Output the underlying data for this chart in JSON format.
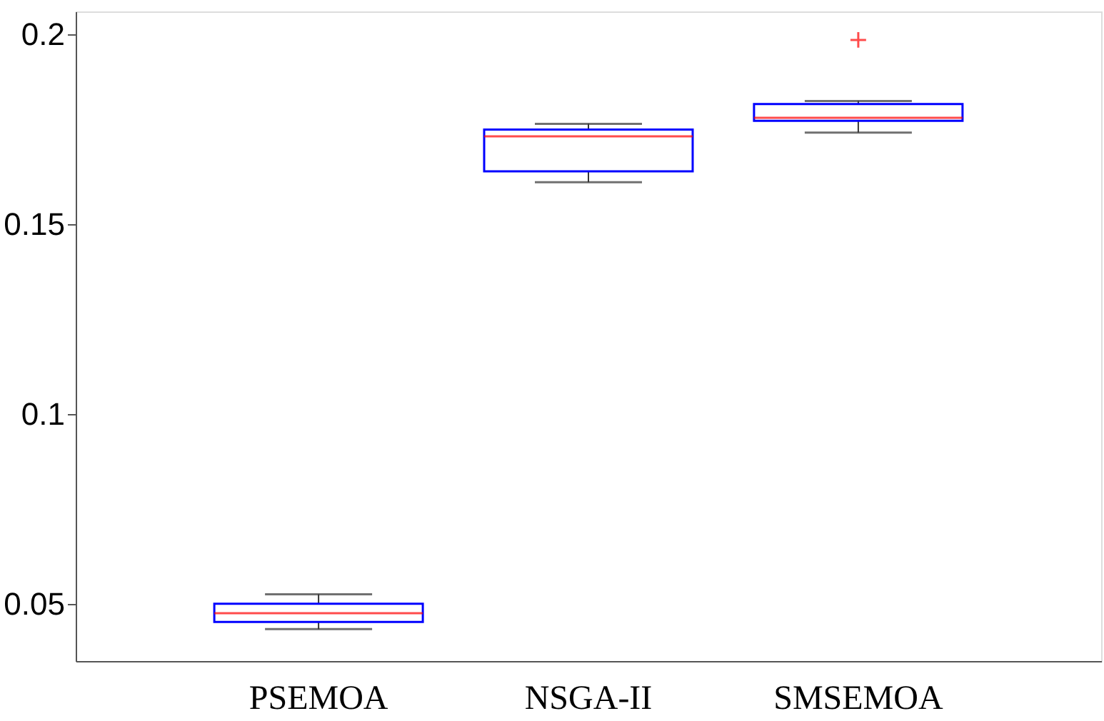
{
  "chart_data": {
    "type": "box",
    "categories": [
      "PSEMOA",
      "NSGA-II",
      "SMSEMOA"
    ],
    "series": [
      {
        "color": "#0000ff",
        "boxes": [
          {
            "low": 0.0433,
            "q1": 0.0452,
            "median": 0.0475,
            "q3": 0.05,
            "high": 0.0525
          },
          {
            "low": 0.161,
            "q1": 0.1639,
            "median": 0.1731,
            "q3": 0.1749,
            "high": 0.1764
          },
          {
            "low": 0.1741,
            "q1": 0.1772,
            "median": 0.178,
            "q3": 0.1816,
            "high": 0.1824,
            "outliers": [
              0.1985
            ]
          }
        ]
      }
    ],
    "ylim": [
      0.0349,
      0.206
    ],
    "yticks": [
      0.05,
      0.1,
      0.15,
      0.2
    ],
    "grid": false
  }
}
